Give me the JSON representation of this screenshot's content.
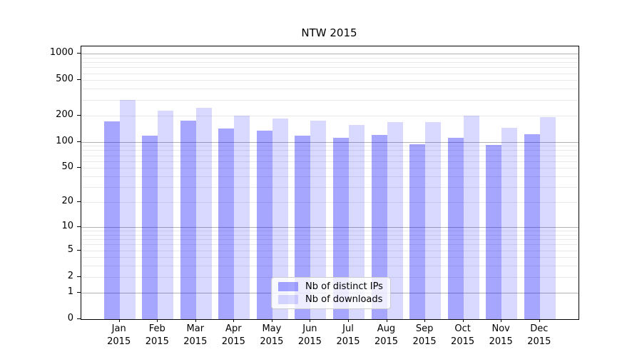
{
  "chart_data": {
    "type": "bar",
    "title": "NTW 2015",
    "xlabel": "",
    "ylabel": "",
    "categories": [
      "Jan",
      "Feb",
      "Mar",
      "Apr",
      "May",
      "Jun",
      "Jul",
      "Aug",
      "Sep",
      "Oct",
      "Nov",
      "Dec"
    ],
    "year_label": "2015",
    "series": [
      {
        "name": "Nb of distinct IPs",
        "color": "rgba(0,0,255,0.35)",
        "values": [
          170,
          117,
          173,
          141,
          135,
          117,
          110,
          119,
          94,
          110,
          92,
          121
        ]
      },
      {
        "name": "Nb of downloads",
        "color": "rgba(0,0,255,0.15)",
        "values": [
          300,
          224,
          243,
          199,
          185,
          173,
          155,
          166,
          168,
          199,
          143,
          192
        ]
      }
    ],
    "yaxis": {
      "scale": "log10(value+1)",
      "ylim": [
        0,
        1205
      ],
      "tick_labels": [
        0,
        1,
        2,
        5,
        10,
        20,
        50,
        100,
        200,
        500,
        1000
      ],
      "major_gridlines": [
        1,
        10,
        100,
        1000
      ],
      "minor_gridlines": [
        2,
        3,
        4,
        5,
        6,
        7,
        8,
        9,
        20,
        30,
        40,
        50,
        60,
        70,
        80,
        90,
        200,
        300,
        400,
        500,
        600,
        700,
        800,
        900
      ],
      "grid": true
    },
    "legend": {
      "position": "lower-center-inside",
      "entries": [
        "Nb of distinct IPs",
        "Nb of downloads"
      ]
    }
  },
  "colors": {
    "bar_ips": "rgba(0,0,255,0.35)",
    "bar_downloads": "rgba(0,0,255,0.15)",
    "major_grid": "#b3b3b3",
    "minor_grid": "#e9e9e9",
    "axis": "#000000",
    "legend_border": "#cccccc",
    "background": "#ffffff"
  }
}
